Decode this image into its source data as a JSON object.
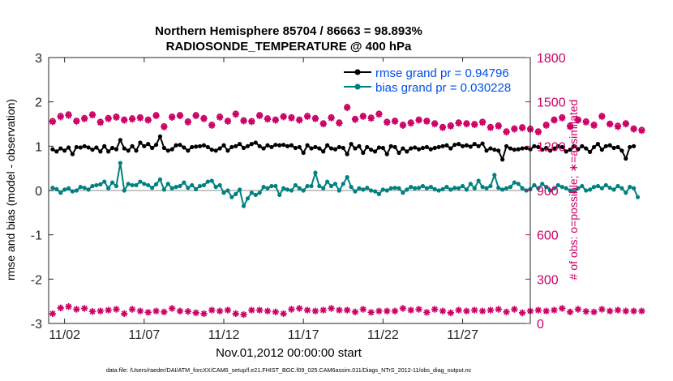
{
  "chart_data": {
    "type": "line",
    "title_line1": "Northern Hemisphere 85704 / 86663 = 98.893%",
    "title_line2": "RADIOSONDE_TEMPERATURE @ 400 hPa",
    "xlabel": "Nov.01,2012 00:00:00 start",
    "ylabel_left": "rmse and bias (model - observation)",
    "ylabel_right": "# of obs: o=possible; ∗=assimilated",
    "footnote": "data file: /Users/raeder/DAI/ATM_forcXX/CAM6_setup/f.e21.FHIST_BGC.f09_025.CAM6assim.011/Diags_NTrS_2012-11/obs_diag_output.nc",
    "x_range": [
      0,
      30.25
    ],
    "ylim_left": [
      -3,
      3
    ],
    "ylim_right": [
      0,
      1800
    ],
    "x_ticks": [
      {
        "value": 1,
        "label": "11/02"
      },
      {
        "value": 6,
        "label": "11/07"
      },
      {
        "value": 11,
        "label": "11/12"
      },
      {
        "value": 16,
        "label": "11/17"
      },
      {
        "value": 21,
        "label": "11/22"
      },
      {
        "value": 26,
        "label": "11/27"
      }
    ],
    "y_ticks_left": [
      -3,
      -2,
      -1,
      0,
      1,
      2,
      3
    ],
    "y_ticks_right": [
      0,
      300,
      600,
      900,
      1200,
      1500,
      1800
    ],
    "time_step_days": 0.25,
    "legend": [
      {
        "label": "rmse grand pr = 0.94796",
        "color": "#000000"
      },
      {
        "label": "bias grand pr = 0.030228",
        "color": "#008080"
      }
    ],
    "series": [
      {
        "name": "rmse",
        "axis": "left",
        "color": "#000000",
        "values": [
          0.93,
          0.88,
          0.95,
          0.9,
          0.97,
          0.82,
          0.98,
          0.97,
          1.0,
          0.97,
          0.92,
          0.97,
          0.88,
          1.0,
          0.88,
          0.96,
          0.93,
          1.14,
          0.95,
          0.9,
          1.0,
          0.9,
          1.08,
          1.0,
          1.05,
          0.96,
          1.03,
          1.22,
          0.96,
          0.9,
          0.93,
          1.02,
          1.03,
          0.97,
          0.9,
          0.98,
          0.99,
          1.0,
          1.02,
          0.98,
          0.92,
          0.9,
          0.95,
          1.02,
          0.9,
          0.98,
          1.0,
          1.05,
          0.96,
          1.0,
          1.05,
          1.08,
          1.0,
          0.95,
          1.02,
          0.98,
          1.03,
          1.02,
          1.03,
          1.0,
          1.02,
          0.96,
          0.98,
          0.85,
          1.02,
          0.95,
          0.98,
          0.95,
          0.88,
          1.02,
          0.95,
          0.93,
          0.98,
          0.96,
          0.82,
          1.05,
          0.95,
          1.0,
          0.85,
          0.98,
          0.92,
          0.88,
          0.97,
          0.96,
          0.82,
          1.0,
          0.98,
          0.85,
          0.95,
          0.88,
          0.95,
          0.97,
          0.93,
          0.96,
          0.98,
          0.93,
          0.96,
          0.98,
          1.0,
          1.02,
          0.95,
          1.03,
          1.05,
          1.0,
          1.02,
          0.99,
          1.05,
          1.0,
          1.06,
          0.9,
          0.95,
          0.92,
          0.9,
          0.7,
          1.0,
          0.95,
          0.92,
          0.93,
          0.95,
          0.96,
          0.93,
          1.0,
          0.98,
          0.92,
          0.96,
          0.9,
          0.95,
          1.0,
          0.98,
          0.88,
          0.92,
          1.0,
          0.93,
          1.0,
          0.95,
          0.87,
          0.98,
          1.05,
          0.92,
          1.0,
          1.02,
          0.96,
          0.98,
          0.9,
          0.72,
          0.98,
          1.0
        ]
      },
      {
        "name": "bias",
        "axis": "left",
        "color": "#008080",
        "values": [
          0.06,
          0.03,
          -0.05,
          0.02,
          0.05,
          -0.02,
          0.0,
          0.08,
          0.06,
          0.02,
          0.1,
          0.12,
          0.14,
          0.2,
          0.05,
          0.18,
          0.1,
          0.62,
          0.0,
          0.15,
          0.12,
          0.12,
          0.2,
          0.15,
          0.12,
          0.06,
          0.14,
          0.25,
          0.02,
          0.15,
          0.05,
          0.08,
          0.1,
          0.18,
          0.06,
          0.12,
          0.03,
          0.1,
          0.12,
          0.2,
          0.22,
          0.08,
          0.12,
          -0.05,
          0.0,
          -0.15,
          -0.08,
          0.02,
          -0.35,
          -0.18,
          -0.05,
          -0.1,
          -0.05,
          0.08,
          0.05,
          0.1,
          0.1,
          -0.1,
          0.05,
          0.02,
          0.0,
          0.12,
          0.05,
          0.0,
          0.1,
          0.1,
          0.4,
          0.1,
          0.05,
          0.2,
          0.1,
          0.15,
          0.0,
          0.15,
          0.3,
          0.08,
          -0.02,
          0.05,
          0.02,
          0.06,
          0.0,
          -0.02,
          -0.08,
          0.02,
          0.0,
          0.05,
          0.06,
          0.05,
          -0.05,
          0.02,
          0.08,
          0.05,
          0.06,
          0.1,
          0.05,
          0.08,
          0.03,
          0.0,
          0.03,
          0.08,
          0.02,
          0.06,
          0.05,
          0.1,
          0.02,
          0.15,
          0.05,
          0.22,
          0.08,
          0.05,
          0.1,
          0.35,
          0.06,
          0.02,
          0.05,
          0.08,
          0.18,
          0.15,
          0.05,
          0.0,
          0.03,
          0.12,
          0.05,
          0.15,
          0.08,
          0.0,
          0.05,
          0.12,
          0.08,
          0.05,
          0.0,
          -0.02,
          0.05,
          0.1,
          0.0,
          0.02,
          0.08,
          0.1,
          0.05,
          0.12,
          0.06,
          0.02,
          0.1,
          0.05,
          -0.05,
          0.08,
          0.05,
          -0.15
        ]
      },
      {
        "name": "possible",
        "axis": "right",
        "color": "#cc0066",
        "values": [
          1370,
          1385,
          1405,
          1388,
          1415,
          1398,
          1372,
          1365,
          1390,
          1460,
          1415,
          1395,
          1365,
          1405,
          1390,
          1430,
          1400,
          1345,
          1380,
          1410,
          1388,
          1355,
          1395,
          1360,
          1380,
          1395,
          1410,
          1375,
          1335,
          1370,
          1400,
          1402,
          1410,
          1350,
          1368,
          1380,
          1410,
          1382,
          1390,
          1375,
          1345,
          1368,
          1400,
          1380,
          1372,
          1365,
          1420,
          1380,
          1375,
          1393,
          1370,
          1402,
          1410,
          1380,
          1388,
          1412,
          1380,
          1395,
          1402,
          1415,
          1395,
          1365,
          1380,
          1450,
          1405,
          1340,
          1390,
          1372,
          1355,
          1370,
          1395,
          1348,
          1360,
          1400,
          1465,
          1420,
          1385,
          1360,
          1405,
          1378,
          1393,
          1380,
          1420,
          1380,
          1365,
          1390,
          1372,
          1348,
          1345,
          1400,
          1360,
          1372,
          1380,
          1345,
          1372,
          1330,
          1355,
          1368,
          1330,
          1335,
          1340,
          1330,
          1360,
          1345,
          1355,
          1368,
          1350,
          1335,
          1365,
          1350,
          1330,
          1310,
          1340,
          1328,
          1300,
          1340,
          1320,
          1315,
          1328,
          1300,
          1318,
          1360,
          1300,
          1330,
          1345,
          1378,
          1380,
          1372,
          1395,
          1375,
          1338,
          1360,
          1380,
          1388,
          1368,
          1405,
          1345,
          1382,
          1405,
          1350,
          1352,
          1320,
          1338,
          1310,
          1355,
          1328,
          1320,
          1330,
          1310,
          1335
        ]
      },
      {
        "name": "assimilated",
        "axis": "right",
        "color": "#cc0066",
        "values": [
          1365,
          1380,
          1398,
          1382,
          1408,
          1392,
          1368,
          1360,
          1385,
          1452,
          1410,
          1390,
          1360,
          1398,
          1385,
          1422,
          1395,
          1340,
          1375,
          1405,
          1382,
          1350,
          1390,
          1355,
          1375,
          1390,
          1405,
          1370,
          1330,
          1365,
          1395,
          1398,
          1405,
          1345,
          1362,
          1375,
          1405,
          1378,
          1385,
          1370,
          1340,
          1362,
          1395,
          1375,
          1368,
          1360,
          1415,
          1375,
          1370,
          1388,
          1365,
          1398,
          1405,
          1375,
          1382,
          1408,
          1375,
          1390,
          1398,
          1410,
          1390,
          1360,
          1375,
          1445,
          1400,
          1335,
          1385,
          1368,
          1350,
          1365,
          1390,
          1342,
          1355,
          1395,
          1460,
          1415,
          1380,
          1355,
          1400,
          1372,
          1388,
          1375,
          1415,
          1375,
          1360,
          1385,
          1368,
          1342,
          1340,
          1395,
          1355,
          1368,
          1375,
          1340,
          1368,
          1325,
          1350,
          1362,
          1325,
          1330,
          1335,
          1325,
          1355,
          1340,
          1350,
          1362,
          1345,
          1330,
          1360,
          1345,
          1325,
          1305,
          1335,
          1322,
          1295,
          1335,
          1315,
          1310,
          1322,
          1295,
          1312,
          1355,
          1295,
          1325,
          1340,
          1372,
          1375,
          1368,
          1390,
          1370,
          1332,
          1355,
          1375,
          1382,
          1362,
          1400,
          1340,
          1378,
          1400,
          1345,
          1348,
          1315,
          1332,
          1305,
          1350,
          1322,
          1315,
          1325,
          1305,
          1330
        ]
      },
      {
        "name": "assimilated_lower",
        "axis": "left",
        "color": "#cc0066",
        "values": [
          -2.78,
          -2.72,
          -2.65,
          -2.7,
          -2.62,
          -2.72,
          -2.68,
          -2.72,
          -2.66,
          -2.7,
          -2.73,
          -2.68,
          -2.72,
          -2.76,
          -2.7,
          -2.73,
          -2.68,
          -2.72,
          -2.78,
          -2.7,
          -2.68,
          -2.73,
          -2.72,
          -2.7,
          -2.75,
          -2.68,
          -2.72,
          -2.7,
          -2.74,
          -2.72,
          -2.66,
          -2.7,
          -2.72,
          -2.75,
          -2.73,
          -2.7,
          -2.76,
          -2.72,
          -2.78,
          -2.73,
          -2.7,
          -2.68,
          -2.72,
          -2.74,
          -2.7,
          -2.73,
          -2.78,
          -2.75,
          -2.8,
          -2.77,
          -2.7,
          -2.66,
          -2.7,
          -2.68,
          -2.72,
          -2.7,
          -2.74,
          -2.73,
          -2.78,
          -2.75,
          -2.68,
          -2.72,
          -2.66,
          -2.74,
          -2.7,
          -2.68,
          -2.72,
          -2.74,
          -2.7,
          -2.73,
          -2.66,
          -2.72,
          -2.7,
          -2.68,
          -2.7,
          -2.72,
          -2.74,
          -2.72,
          -2.68,
          -2.72,
          -2.75,
          -2.7,
          -2.72,
          -2.76,
          -2.72,
          -2.68,
          -2.72,
          -2.7,
          -2.66,
          -2.74,
          -2.7,
          -2.73,
          -2.68,
          -2.72,
          -2.75,
          -2.7,
          -2.68,
          -2.74,
          -2.72,
          -2.7,
          -2.76,
          -2.73,
          -2.7,
          -2.74,
          -2.72,
          -2.68,
          -2.7,
          -2.75,
          -2.72,
          -2.76,
          -2.7,
          -2.73,
          -2.68,
          -2.72,
          -2.74,
          -2.7,
          -2.68,
          -2.72,
          -2.76,
          -2.7,
          -2.72,
          -2.75,
          -2.7,
          -2.68,
          -2.72,
          -2.74,
          -2.7,
          -2.73,
          -2.66,
          -2.72,
          -2.74,
          -2.7,
          -2.68,
          -2.72,
          -2.73,
          -2.7,
          -2.74,
          -2.72,
          -2.68,
          -2.7,
          -2.72,
          -2.75,
          -2.7,
          -2.68,
          -2.72,
          -2.74,
          -2.72,
          -2.67,
          -2.72,
          -2.99
        ]
      }
    ]
  }
}
